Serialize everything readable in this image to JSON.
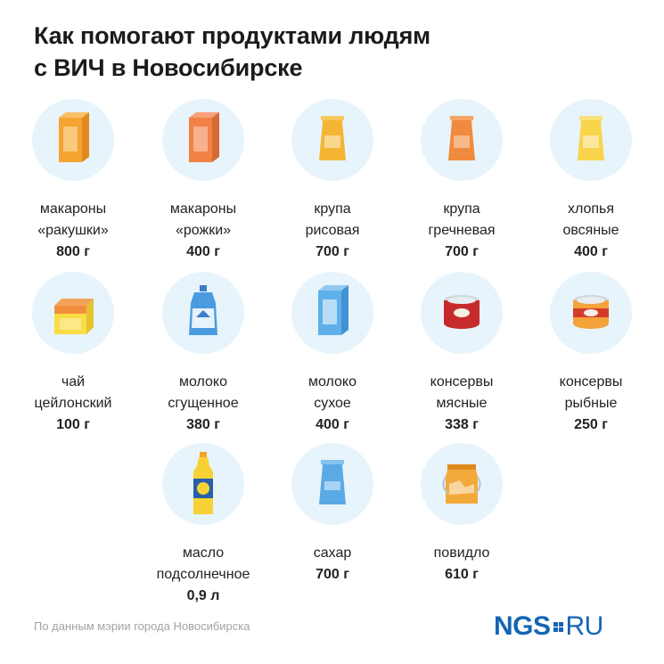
{
  "title": {
    "line1": "Как помогают продуктами людям",
    "line2": "с ВИЧ в Новосибирске"
  },
  "items": [
    {
      "icon": "pasta-box-icon",
      "line1": "макароны",
      "line2": "«ракушки»",
      "amount": "800 г"
    },
    {
      "icon": "pasta-box-icon",
      "line1": "макароны",
      "line2": "«рожки»",
      "amount": "400 г"
    },
    {
      "icon": "rice-bag-icon",
      "line1": "крупа",
      "line2": "рисовая",
      "amount": "700 г"
    },
    {
      "icon": "buckwheat-bag-icon",
      "line1": "крупа",
      "line2": "гречневая",
      "amount": "700 г"
    },
    {
      "icon": "oat-bag-icon",
      "line1": "хлопья",
      "line2": "овсяные",
      "amount": "400 г"
    },
    {
      "icon": "tea-box-icon",
      "line1": "чай",
      "line2": "цейлонский",
      "amount": "100 г"
    },
    {
      "icon": "condensed-milk-pouch-icon",
      "line1": "молоко",
      "line2": "сгущенное",
      "amount": "380 г"
    },
    {
      "icon": "milk-powder-box-icon",
      "line1": "молоко",
      "line2": "сухое",
      "amount": "400 г"
    },
    {
      "icon": "meat-can-icon",
      "line1": "консервы",
      "line2": "мясные",
      "amount": "338 г"
    },
    {
      "icon": "fish-can-icon",
      "line1": "консервы",
      "line2": "рыбные",
      "amount": "250 г"
    },
    {
      "icon": "oil-bottle-icon",
      "line1": "масло",
      "line2": "подсолнечное",
      "amount": "0,9 л"
    },
    {
      "icon": "sugar-bag-icon",
      "line1": "сахар",
      "line2": "",
      "amount": "700 г"
    },
    {
      "icon": "jam-jar-icon",
      "line1": "повидло",
      "line2": "",
      "amount": "610 г"
    }
  ],
  "footer": {
    "source": "По данным мэрии города Новосибирска"
  },
  "logo": {
    "ngs": "NGS",
    "ru": "RU"
  },
  "colors": {
    "circle": "#e7f4fb",
    "brand": "#1565b5"
  }
}
